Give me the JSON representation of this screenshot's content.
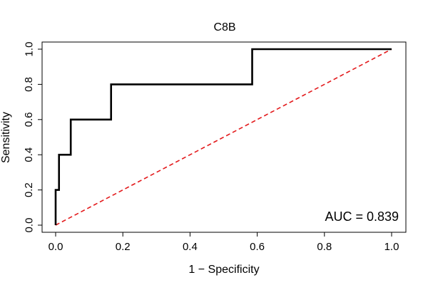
{
  "chart_data": {
    "type": "line",
    "title": "C8B",
    "xlabel": "1 − Specificity",
    "ylabel": "Sensitivity",
    "xlim": [
      0,
      1
    ],
    "ylim": [
      0,
      1
    ],
    "xticks": [
      0.0,
      0.2,
      0.4,
      0.6,
      0.8,
      1.0
    ],
    "xtick_labels": [
      "0.0",
      "0.2",
      "0.4",
      "0.6",
      "0.8",
      "1.0"
    ],
    "yticks": [
      0.0,
      0.2,
      0.4,
      0.6,
      0.8,
      1.0
    ],
    "ytick_labels": [
      "0.0",
      "0.2",
      "0.4",
      "0.6",
      "0.8",
      "1.0"
    ],
    "grid": false,
    "series": [
      {
        "name": "ROC curve",
        "color": "#000000",
        "style": "solid",
        "x": [
          0.0,
          0.0,
          0.005,
          0.005,
          0.01,
          0.01,
          0.045,
          0.045,
          0.165,
          0.165,
          0.585,
          0.585,
          1.0
        ],
        "y": [
          0.0,
          0.2,
          0.2,
          0.2,
          0.2,
          0.4,
          0.4,
          0.6,
          0.6,
          0.8,
          0.8,
          1.0,
          1.0
        ]
      },
      {
        "name": "Reference diagonal",
        "color": "#e31a1c",
        "style": "dashed",
        "x": [
          0.0,
          1.0
        ],
        "y": [
          0.0,
          1.0
        ]
      }
    ],
    "annotations": [
      {
        "text": "AUC = 0.839",
        "position": "bottom-right"
      }
    ]
  }
}
